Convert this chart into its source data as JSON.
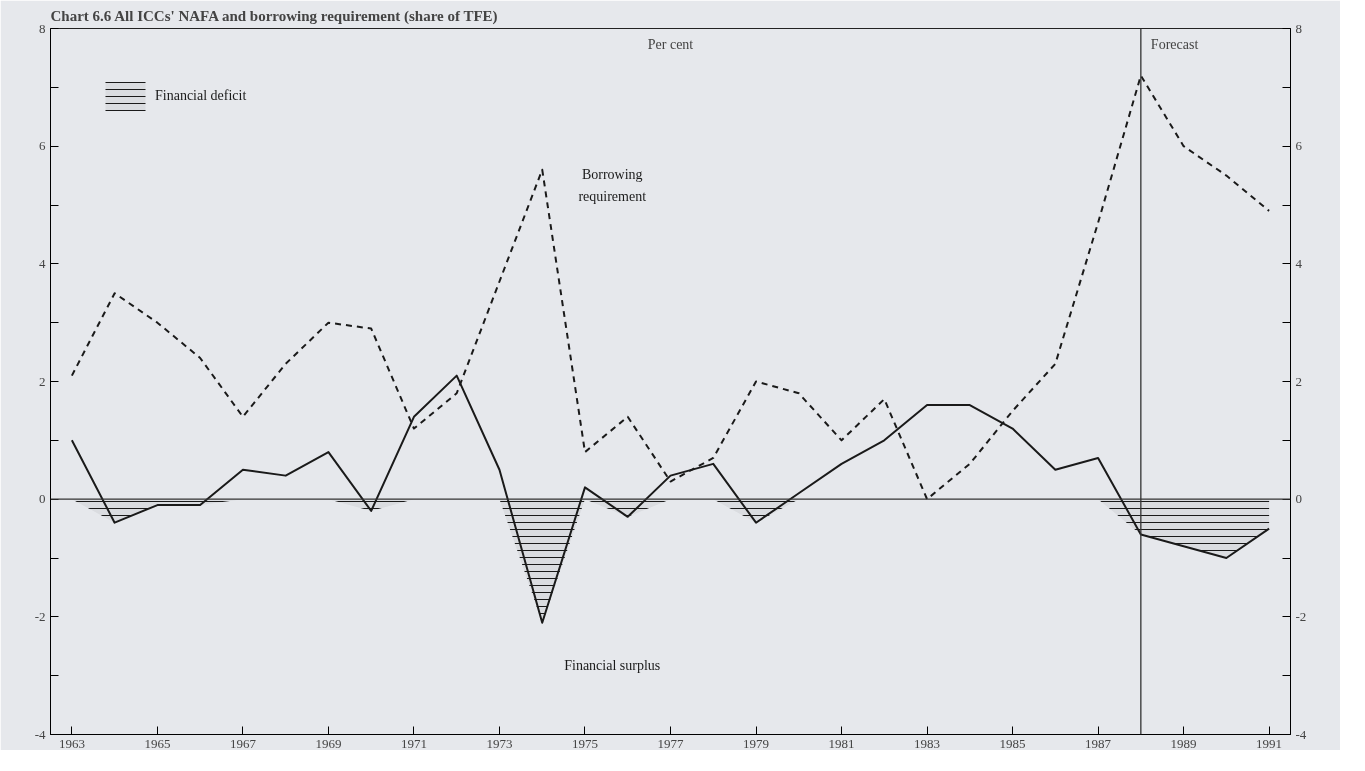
{
  "chart_data": {
    "type": "line",
    "title": "Chart 6.6 All ICCs' NAFA and borrowing requirement (share of TFE)",
    "ylabel": "Per cent",
    "x": [
      1963,
      1964,
      1965,
      1966,
      1967,
      1968,
      1969,
      1970,
      1971,
      1972,
      1973,
      1974,
      1975,
      1976,
      1977,
      1978,
      1979,
      1980,
      1981,
      1982,
      1983,
      1984,
      1985,
      1986,
      1987,
      1988,
      1989,
      1990,
      1991
    ],
    "series": [
      {
        "name": "Financial surplus",
        "color": "#1a1a1a",
        "line_style": "solid",
        "values": [
          1.0,
          -0.4,
          -0.1,
          -0.1,
          0.5,
          0.4,
          0.8,
          -0.2,
          1.4,
          2.1,
          0.5,
          -2.1,
          0.2,
          -0.3,
          0.4,
          0.6,
          -0.4,
          0.1,
          0.6,
          1.0,
          1.6,
          1.6,
          1.2,
          0.5,
          0.7,
          -0.6,
          -0.8,
          -1.0,
          -0.5
        ]
      },
      {
        "name": "Borrowing requirement",
        "color": "#1a1a1a",
        "line_style": "dashed",
        "values": [
          2.1,
          3.5,
          3.0,
          2.4,
          1.4,
          2.3,
          3.0,
          2.9,
          1.2,
          1.8,
          3.7,
          5.6,
          0.8,
          1.4,
          0.3,
          0.7,
          2.0,
          1.8,
          1.0,
          1.7,
          0.0,
          0.6,
          1.5,
          2.3,
          4.7,
          7.2,
          6.0,
          5.5,
          4.9
        ]
      },
      {
        "name": "Financial deficit",
        "type": "area",
        "color": "#1a1a1a",
        "values": [
          0,
          -0.4,
          -0.1,
          -0.1,
          0,
          0,
          0,
          -0.2,
          0,
          0,
          0,
          -2.1,
          0,
          -0.3,
          0,
          0,
          -0.4,
          0,
          0,
          0,
          0,
          0,
          0,
          0,
          0,
          -0.6,
          -0.8,
          -1.0,
          -0.5
        ]
      }
    ],
    "xlim": [
      1962.5,
      1991.5
    ],
    "xticks": [
      1963,
      1965,
      1967,
      1969,
      1971,
      1973,
      1975,
      1977,
      1979,
      1981,
      1983,
      1985,
      1987,
      1989,
      1991
    ],
    "ylim": [
      -4,
      8
    ],
    "yticks": [
      -4,
      {
        "value": -3,
        "label": null
      },
      -2,
      {
        "value": -1,
        "label": null
      },
      0,
      {
        "value": 1,
        "label": null
      },
      2,
      {
        "value": 3,
        "label": null
      },
      4,
      {
        "value": 5,
        "label": null
      },
      6,
      {
        "value": 7,
        "label": null
      },
      8
    ],
    "y2lim": [
      -4,
      8
    ],
    "y2ticks": [
      -4,
      {
        "value": -3,
        "label": null
      },
      -2,
      {
        "value": -1,
        "label": null
      },
      0,
      {
        "value": 1,
        "label": null
      },
      2,
      {
        "value": 3,
        "label": null
      },
      4,
      {
        "value": 5,
        "label": null
      },
      6,
      {
        "value": 7,
        "label": null
      },
      8
    ],
    "ref_lines": [
      {
        "axis": "y",
        "value": 0,
        "label": null
      },
      {
        "axis": "x",
        "value": 1988,
        "label": "Forecast"
      }
    ],
    "legend": "top left",
    "grid": false
  }
}
